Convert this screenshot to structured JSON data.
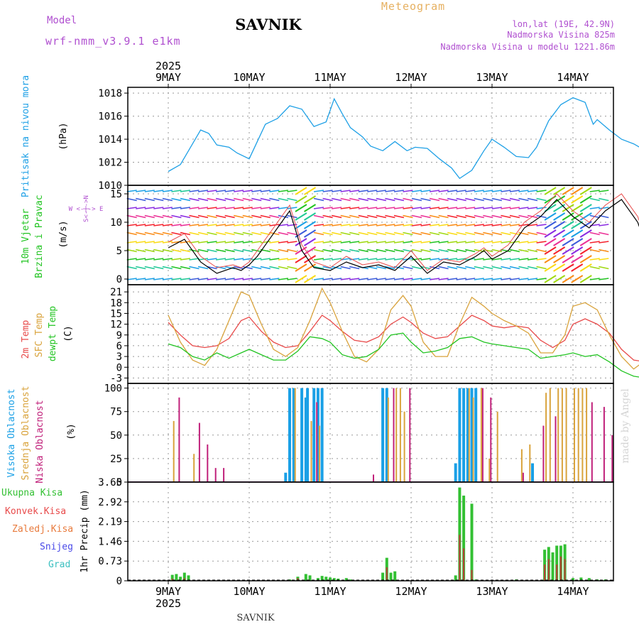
{
  "header": {
    "model_label": "Model",
    "model_name": "wrf-nmm_v3.9.1 e1km",
    "station": "SAVNIK",
    "meteogram": "Meteogram",
    "lonlat": "lon,lat (19E, 42.9N)",
    "altitude": "Nadmorska Visina 825m",
    "model_altitude": "Nadmorska Visina u modelu 1221.86m",
    "footer_station": "SAVNIK",
    "credit": "made by Angel",
    "year_top": "2025",
    "year_bottom": "2025"
  },
  "colors": {
    "pressure": "#1ea0e6",
    "temp2m": "#e84a4a",
    "sfc": "#d9a33c",
    "dewpt": "#22c422",
    "high_cloud": "#1aa0e6",
    "mid_cloud": "#d9a33c",
    "low_cloud": "#c0207a",
    "precip_total": "#33c033",
    "precip_conv": "#c03b3b",
    "label_purple": "#b050d0",
    "label_orange": "#e6b060"
  },
  "chart_data": [
    {
      "type": "line",
      "name": "pressure",
      "title": "Pritisak na nivou mora",
      "ylabel": "(hPa)",
      "ylim": [
        1010,
        1018.5
      ],
      "yticks": [
        "1010",
        "1012",
        "1014",
        "1016",
        "1018"
      ],
      "x_days": [
        0,
        0.15,
        0.25,
        0.4,
        0.5,
        0.6,
        0.75,
        0.85,
        1.0,
        1.1,
        1.2,
        1.35,
        1.5,
        1.65,
        1.8,
        1.95,
        2.05,
        2.15,
        2.25,
        2.4,
        2.5,
        2.65,
        2.8,
        2.95,
        3.05,
        3.2,
        3.35,
        3.5,
        3.6,
        3.75,
        3.9,
        4.0,
        4.15,
        4.3,
        4.45,
        4.55,
        4.7,
        4.85,
        5.0,
        5.15,
        5.25,
        5.3,
        5.45,
        5.6,
        5.75,
        5.9,
        6.0,
        6.1
      ],
      "values": [
        1011.2,
        1011.8,
        1013.0,
        1014.8,
        1014.5,
        1013.5,
        1013.3,
        1012.8,
        1012.3,
        1013.8,
        1015.3,
        1015.8,
        1016.9,
        1016.6,
        1015.1,
        1015.5,
        1017.5,
        1016.2,
        1015.0,
        1014.2,
        1013.4,
        1013.0,
        1013.8,
        1013.0,
        1013.3,
        1013.2,
        1012.3,
        1011.5,
        1010.6,
        1011.3,
        1013.0,
        1014.0,
        1013.3,
        1012.5,
        1012.4,
        1013.3,
        1015.6,
        1017.0,
        1017.6,
        1017.2,
        1015.3,
        1015.7,
        1014.8,
        1014.0,
        1013.6,
        1013.0,
        1012.4,
        1012.0
      ],
      "series_label": "Pritisak na nivou mora"
    },
    {
      "type": "line",
      "name": "wind",
      "title": "10m Vjetar Brzina i Pravac",
      "title_lines": [
        "10m Vjetar",
        "Brzina i Pravac"
      ],
      "ylabel": "(m/s)",
      "ylim": [
        -1,
        16.5
      ],
      "yticks": [
        "0",
        "5",
        "10",
        "15"
      ],
      "compass": "W <-|-> E",
      "compass_ns": "S<-|->N",
      "x_days": [
        0,
        0.2,
        0.4,
        0.6,
        0.8,
        0.9,
        1.0,
        1.1,
        1.3,
        1.5,
        1.65,
        1.8,
        2.0,
        2.2,
        2.4,
        2.6,
        2.8,
        3.0,
        3.2,
        3.4,
        3.6,
        3.8,
        3.9,
        4.0,
        4.2,
        4.4,
        4.6,
        4.8,
        5.0,
        5.2,
        5.4,
        5.6,
        5.8,
        6.0
      ],
      "values": [
        5.5,
        7.0,
        3.0,
        1.0,
        2.0,
        1.5,
        2.5,
        4.0,
        8.0,
        12.0,
        5.0,
        2.0,
        1.5,
        3.0,
        2.0,
        2.5,
        1.5,
        4.0,
        1.0,
        3.0,
        2.5,
        4.0,
        5.0,
        3.5,
        5.0,
        9.0,
        11.0,
        14.0,
        11.0,
        9.0,
        12.0,
        14.0,
        10.0,
        2.0
      ],
      "gust": [
        6.5,
        8.0,
        4.0,
        2.0,
        2.5,
        2.0,
        3.0,
        5.0,
        9.0,
        13.0,
        6.0,
        3.0,
        2.0,
        4.0,
        2.5,
        3.0,
        2.0,
        5.0,
        1.5,
        3.5,
        3.0,
        4.5,
        5.5,
        4.0,
        6.0,
        10.0,
        12.0,
        15.0,
        12.0,
        10.0,
        13.0,
        15.0,
        11.0,
        3.0
      ]
    },
    {
      "type": "line",
      "name": "temperature",
      "title_lines": [
        "2m Temp",
        "SFC Temp",
        "dewpt Temp"
      ],
      "ylabel": "(C)",
      "ylim": [
        -4.5,
        23
      ],
      "yticks": [
        "-3",
        "0",
        "3",
        "6",
        "9",
        "12",
        "15",
        "18",
        "21"
      ],
      "x_days": [
        0,
        0.15,
        0.3,
        0.45,
        0.6,
        0.75,
        0.9,
        1.0,
        1.15,
        1.3,
        1.45,
        1.6,
        1.75,
        1.9,
        2.0,
        2.15,
        2.3,
        2.45,
        2.6,
        2.75,
        2.9,
        3.0,
        3.15,
        3.3,
        3.45,
        3.6,
        3.75,
        3.9,
        4.0,
        4.15,
        4.3,
        4.45,
        4.6,
        4.75,
        4.9,
        5.0,
        5.15,
        5.3,
        5.45,
        5.6,
        5.75,
        5.9,
        6.0,
        6.1
      ],
      "series": [
        {
          "name": "2m Temp",
          "values": [
            12.5,
            9.0,
            6.0,
            5.5,
            6.0,
            8.0,
            13.0,
            14.0,
            10.0,
            7.0,
            5.5,
            6.0,
            10.0,
            14.5,
            13.0,
            10.0,
            7.5,
            7.0,
            8.5,
            12.0,
            14.0,
            12.5,
            9.5,
            8.0,
            8.5,
            11.5,
            14.5,
            13.0,
            11.5,
            11.0,
            11.5,
            11.0,
            7.5,
            5.5,
            7.5,
            12.0,
            13.5,
            12.0,
            9.5,
            5.0,
            2.0,
            1.5,
            6.0,
            12.5
          ]
        },
        {
          "name": "SFC Temp",
          "values": [
            14.5,
            7.0,
            2.0,
            0.5,
            5.0,
            13.0,
            21.0,
            20.0,
            12.0,
            5.0,
            3.0,
            5.5,
            13.0,
            22.0,
            18.0,
            10.0,
            3.0,
            1.5,
            5.0,
            16.0,
            20.0,
            17.0,
            7.0,
            3.0,
            3.0,
            12.0,
            19.5,
            17.0,
            15.0,
            13.0,
            11.5,
            9.5,
            4.0,
            4.0,
            9.0,
            17.0,
            18.0,
            16.0,
            9.0,
            3.0,
            -0.5,
            2.0,
            10.0,
            20.0
          ]
        },
        {
          "name": "dewpt Temp",
          "values": [
            6.5,
            5.5,
            3.0,
            2.0,
            4.0,
            2.5,
            4.0,
            5.0,
            3.5,
            2.0,
            2.0,
            4.5,
            8.5,
            8.0,
            7.0,
            3.5,
            2.5,
            3.0,
            5.0,
            9.0,
            9.5,
            7.0,
            4.0,
            4.5,
            5.5,
            8.0,
            8.5,
            7.0,
            6.5,
            6.0,
            5.5,
            5.0,
            2.5,
            3.0,
            3.5,
            4.0,
            3.0,
            3.5,
            1.5,
            -1.0,
            -2.5,
            -3.0,
            -2.5,
            0.0
          ]
        }
      ]
    },
    {
      "type": "bar",
      "name": "clouds",
      "title_lines": [
        "Visoka Oblacnost",
        "Srednja Oblacnost",
        "Niska Oblacnost"
      ],
      "ylabel": "(%)",
      "ylim": [
        0,
        105
      ],
      "yticks": [
        "0",
        "25",
        "50",
        "75",
        "100"
      ],
      "high": [
        [
          1.45,
          10
        ],
        [
          1.5,
          100
        ],
        [
          1.55,
          100
        ],
        [
          1.65,
          100
        ],
        [
          1.7,
          90
        ],
        [
          1.72,
          100
        ],
        [
          1.8,
          100
        ],
        [
          1.85,
          100
        ],
        [
          1.9,
          100
        ],
        [
          2.65,
          100
        ],
        [
          2.7,
          100
        ],
        [
          3.55,
          20
        ],
        [
          3.6,
          100
        ],
        [
          3.65,
          100
        ],
        [
          3.7,
          100
        ],
        [
          3.75,
          100
        ],
        [
          3.8,
          100
        ],
        [
          4.5,
          20
        ]
      ],
      "mid": [
        [
          0.05,
          65
        ],
        [
          0.3,
          30
        ],
        [
          1.55,
          100
        ],
        [
          1.75,
          65
        ],
        [
          1.85,
          60
        ],
        [
          2.7,
          90
        ],
        [
          2.8,
          100
        ],
        [
          2.85,
          100
        ],
        [
          2.9,
          75
        ],
        [
          3.7,
          100
        ],
        [
          3.75,
          90
        ],
        [
          3.85,
          100
        ],
        [
          3.95,
          25
        ],
        [
          4.05,
          75
        ],
        [
          4.35,
          35
        ],
        [
          4.45,
          40
        ],
        [
          4.65,
          95
        ],
        [
          4.7,
          100
        ],
        [
          4.8,
          100
        ],
        [
          4.85,
          100
        ],
        [
          4.9,
          100
        ],
        [
          5.0,
          100
        ],
        [
          5.05,
          100
        ],
        [
          5.1,
          100
        ],
        [
          5.15,
          100
        ]
      ],
      "low": [
        [
          0.1,
          90
        ],
        [
          0.35,
          63
        ],
        [
          0.45,
          40
        ],
        [
          0.55,
          15
        ],
        [
          0.65,
          15
        ],
        [
          1.8,
          85
        ],
        [
          2.5,
          8
        ],
        [
          2.75,
          100
        ],
        [
          2.95,
          100
        ],
        [
          3.85,
          100
        ],
        [
          3.95,
          90
        ],
        [
          4.35,
          10
        ],
        [
          4.6,
          60
        ],
        [
          4.75,
          70
        ],
        [
          5.2,
          85
        ],
        [
          5.35,
          80
        ],
        [
          5.45,
          50
        ],
        [
          5.65,
          90
        ],
        [
          5.8,
          10
        ],
        [
          6.0,
          5
        ],
        [
          6.2,
          5
        ]
      ]
    },
    {
      "type": "bar",
      "name": "precip",
      "title_lines": [
        "Ukupna  Kisa",
        "Konvek.Kisa",
        "Zaledj.Kisa",
        "Snijeg",
        "Grad"
      ],
      "ylabel": "1hr Precip (mm)",
      "ylim": [
        0,
        3.65
      ],
      "yticks": [
        "0",
        "0.73",
        "1.46",
        "2.19",
        "2.92",
        "3.65"
      ],
      "total": [
        [
          0.05,
          0.22
        ],
        [
          0.1,
          0.25
        ],
        [
          0.15,
          0.15
        ],
        [
          0.2,
          0.3
        ],
        [
          0.25,
          0.2
        ],
        [
          1.5,
          0.05
        ],
        [
          1.6,
          0.15
        ],
        [
          1.7,
          0.25
        ],
        [
          1.75,
          0.2
        ],
        [
          1.85,
          0.1
        ],
        [
          1.9,
          0.18
        ],
        [
          1.95,
          0.15
        ],
        [
          2.0,
          0.12
        ],
        [
          2.05,
          0.1
        ],
        [
          2.1,
          0.08
        ],
        [
          2.2,
          0.1
        ],
        [
          2.25,
          0.05
        ],
        [
          2.65,
          0.3
        ],
        [
          2.7,
          0.85
        ],
        [
          2.75,
          0.3
        ],
        [
          2.8,
          0.35
        ],
        [
          3.55,
          0.2
        ],
        [
          3.6,
          3.45
        ],
        [
          3.65,
          3.15
        ],
        [
          3.75,
          2.85
        ],
        [
          3.8,
          0.05
        ],
        [
          4.3,
          0.05
        ],
        [
          4.65,
          1.15
        ],
        [
          4.7,
          1.25
        ],
        [
          4.75,
          1.05
        ],
        [
          4.8,
          1.3
        ],
        [
          4.85,
          1.3
        ],
        [
          4.9,
          1.35
        ],
        [
          5.0,
          0.1
        ],
        [
          5.1,
          0.12
        ],
        [
          5.2,
          0.1
        ],
        [
          5.3,
          0.05
        ],
        [
          5.4,
          0.05
        ]
      ],
      "conv": [
        [
          0.05,
          0.08
        ],
        [
          0.2,
          0.1
        ],
        [
          1.6,
          0.1
        ],
        [
          2.7,
          0.5
        ],
        [
          3.6,
          1.7
        ],
        [
          3.65,
          1.2
        ],
        [
          3.75,
          0.4
        ],
        [
          4.65,
          0.6
        ],
        [
          4.7,
          0.8
        ],
        [
          4.8,
          0.6
        ],
        [
          4.85,
          0.9
        ],
        [
          4.9,
          0.8
        ]
      ]
    }
  ],
  "x_axis": {
    "day_labels": [
      "9MAY",
      "10MAY",
      "11MAY",
      "12MAY",
      "13MAY",
      "14MAY"
    ]
  }
}
